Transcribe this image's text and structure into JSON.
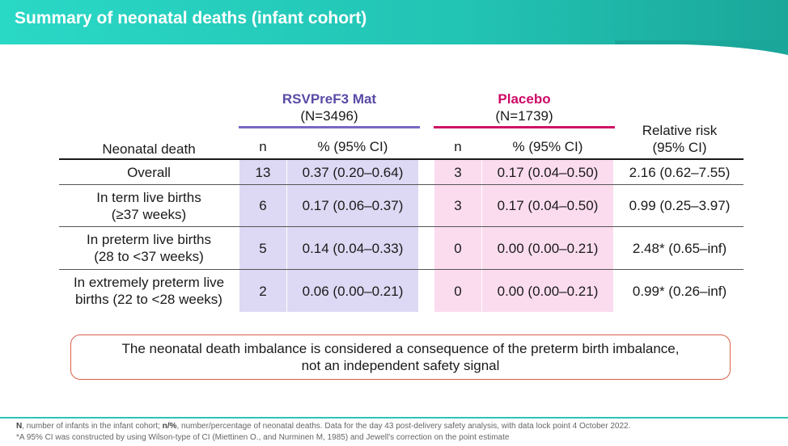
{
  "header": {
    "title": "Summary of neonatal deaths (infant cohort)"
  },
  "groups": {
    "vaccine": {
      "name": "RSVPreF3 Mat",
      "n": "(N=3496)"
    },
    "placebo": {
      "name": "Placebo",
      "n": "(N=1739)"
    }
  },
  "columns": {
    "category": "Neonatal death",
    "n": "n",
    "pct": "% (95% CI)",
    "rr_line1": "Relative risk",
    "rr_line2": "(95% CI)"
  },
  "rows": [
    {
      "label1": "Overall",
      "label2": "",
      "vac_n": "13",
      "vac_pct": "0.37 (0.20–0.64)",
      "pla_n": "3",
      "pla_pct": "0.17 (0.04–0.50)",
      "rr": "2.16 (0.62–7.55)"
    },
    {
      "label1": "In term live births",
      "label2": "(≥37 weeks)",
      "vac_n": "6",
      "vac_pct": "0.17 (0.06–0.37)",
      "pla_n": "3",
      "pla_pct": "0.17 (0.04–0.50)",
      "rr": "0.99 (0.25–3.97)"
    },
    {
      "label1": "In preterm live births",
      "label2": "(28 to <37 weeks)",
      "vac_n": "5",
      "vac_pct": "0.14 (0.04–0.33)",
      "pla_n": "0",
      "pla_pct": "0.00 (0.00–0.21)",
      "rr": "2.48* (0.65–inf)"
    },
    {
      "label1": "In extremely preterm live",
      "label2": "births (22 to <28 weeks)",
      "vac_n": "2",
      "vac_pct": "0.06 (0.00–0.21)",
      "pla_n": "0",
      "pla_pct": "0.00 (0.00–0.21)",
      "rr": "0.99* (0.26–inf)"
    }
  ],
  "note": {
    "line1": "The neonatal death imbalance is considered a consequence of the preterm birth imbalance,",
    "line2": "not an independent safety signal"
  },
  "footnotes": {
    "n_key": "N",
    "n_text": ", number of infants in the infant cohort; ",
    "pct_key": "n/%",
    "pct_text": ", number/percentage of neonatal deaths. Data for the day 43 post-delivery safety analysis, with data lock point 4 October 2022.",
    "ci_note": "*A 95% CI was constructed by using Wilson-type of CI (Miettinen O., and Nurminen M, 1985) and Jewell's correction on the point estimate"
  },
  "colors": {
    "banner_left": "#2ad8c6",
    "banner_right": "#1aa79a",
    "vaccine": "#5a4aa6",
    "placebo": "#cc0a66",
    "vaccine_shade": "#ddd8f3",
    "placebo_shade": "#fbdcef",
    "note_border": "#d9604a"
  }
}
